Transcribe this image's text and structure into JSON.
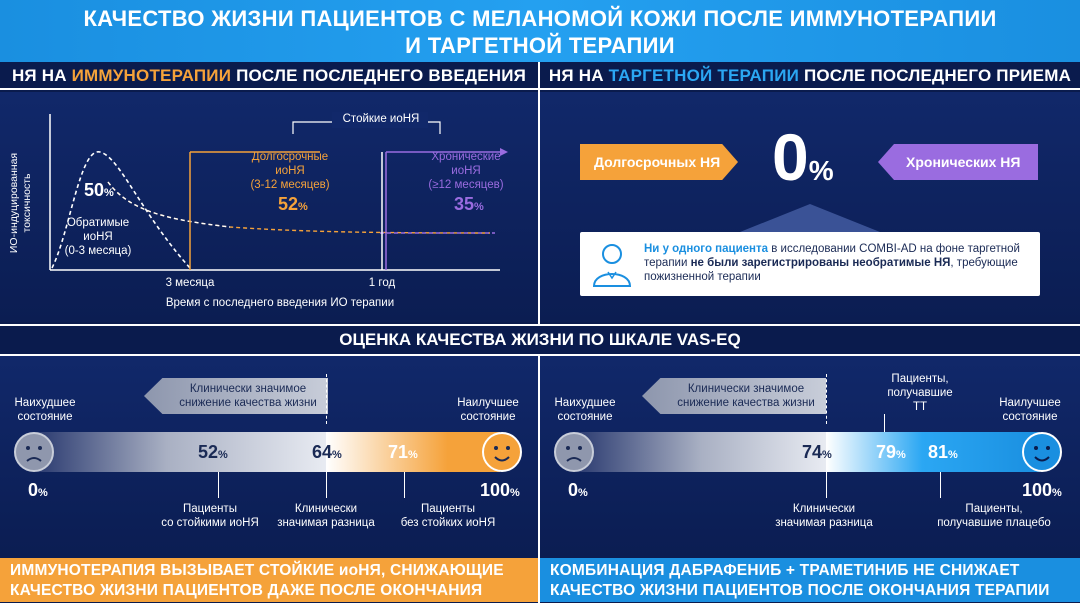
{
  "title": {
    "line1": "КАЧЕСТВО ЖИЗНИ ПАЦИЕНТОВ С МЕЛАНОМОЙ КОЖИ ПОСЛЕ ИММУНОТЕРАПИИ",
    "line2": "И ТАРГЕТНОЙ ТЕРАПИИ"
  },
  "left_top": {
    "head_pre": "НЯ НА ",
    "head_accent": "ИММУНОТЕРАПИИ",
    "head_post": " ПОСЛЕ ПОСЛЕДНЕГО ВВЕДЕНИЯ",
    "y_label_1": "ИО-индуцированная",
    "y_label_2": "токсичность",
    "x_label": "Время с последнего введения ИО терапии",
    "tick_3m": "3 месяца",
    "tick_1y": "1 год",
    "persistent_label": "Стойкие иоНЯ",
    "reversible_pct": "50",
    "reversible_label_1": "Обратимые",
    "reversible_label_2": "иоНЯ",
    "reversible_label_3": "(0-3 месяца)",
    "longterm_label_1": "Долгосрочные",
    "longterm_label_2": "иоНЯ",
    "longterm_label_3": "(3-12 месяцев)",
    "longterm_pct": "52",
    "chronic_label_1": "Хронические",
    "chronic_label_2": "иоНЯ",
    "chronic_label_3": "(≥12 месяцев)",
    "chronic_pct": "35",
    "pct_sign": "%"
  },
  "right_top": {
    "head_pre": "НЯ НА ",
    "head_accent": "ТАРГЕТНОЙ ТЕРАПИИ",
    "head_post": " ПОСЛЕ ПОСЛЕДНЕГО ПРИЕМА",
    "longterm_btn": "Долгосрочных НЯ",
    "chronic_btn": "Хронических НЯ",
    "zero": "0",
    "pct_sign": "%",
    "note_bold_1": "Ни у одного пациента",
    "note_1": " в исследовании COMBI-AD на фоне таргетной терапии ",
    "note_bold_2": "не были зарегистрированы необратимые НЯ",
    "note_2": ", требующие пожизненной терапии"
  },
  "middle_head": "ОЦЕНКА КАЧЕСТВА ЖИЗНИ ПО ШКАЛЕ VAS-EQ",
  "left_bottom": {
    "worst_1": "Наихудшее",
    "worst_2": "состояние",
    "best_1": "Наилучшее",
    "best_2": "состояние",
    "arrow_1": "Клинически значимое",
    "arrow_2": "снижение качества жизни",
    "v52": "52",
    "v64": "64",
    "v71": "71",
    "zero": "0",
    "hundred": "100",
    "pct_sign": "%",
    "lbl52_1": "Пациенты",
    "lbl52_2": "со стойкими иоНЯ",
    "lbl64_1": "Клинически",
    "lbl64_2": "значимая разница",
    "lbl71_1": "Пациенты",
    "lbl71_2": "без стойких иоНЯ"
  },
  "right_bottom": {
    "worst_1": "Наихудшее",
    "worst_2": "состояние",
    "best_1": "Наилучшее",
    "best_2": "состояние",
    "arrow_1": "Клинически значимое",
    "arrow_2": "снижение качества жизни",
    "v74": "74",
    "v79": "79",
    "v81": "81",
    "zero": "0",
    "hundred": "100",
    "pct_sign": "%",
    "lbl74_1": "Клинически",
    "lbl74_2": "значимая разница",
    "lbl79_1": "Пациенты,",
    "lbl79_2": "получавшие",
    "lbl79_3": "ТТ",
    "lbl81_1": "Пациенты,",
    "lbl81_2": "получавшие плацебо"
  },
  "banner_left_1": "ИММУНОТЕРАПИЯ ВЫЗЫВАЕТ СТОЙКИЕ иоНЯ, СНИЖАЮЩИЕ",
  "banner_left_2": "КАЧЕСТВО ЖИЗНИ ПАЦИЕНТОВ ДАЖЕ ПОСЛЕ ОКОНЧАНИЯ ТЕРАПИИ",
  "banner_right_1": "КОМБИНАЦИЯ ДАБРАФЕНИБ + ТРАМЕТИНИБ НЕ СНИЖАЕТ",
  "banner_right_2": "КАЧЕСТВО ЖИЗНИ ПАЦИЕНТОВ ПОСЛЕ ОКОНЧАНИЯ ТЕРАПИИ",
  "colors": {
    "orange": "#f5a23a",
    "cyan": "#2ba7f3",
    "purple": "#9a6ce0",
    "navy": "#0a1b4d"
  },
  "icons": {
    "patient": "person-icon",
    "sad": "sad-face-icon",
    "happy": "happy-face-icon"
  }
}
